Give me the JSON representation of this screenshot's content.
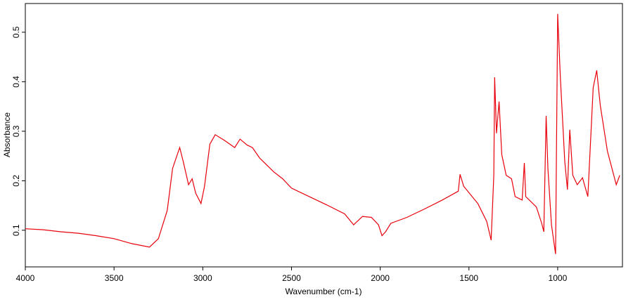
{
  "chart_data": {
    "type": "line",
    "x_label": "Wavenumber (cm-1)",
    "y_label": "Absorbance",
    "xlim": [
      4000,
      635
    ],
    "ylim": [
      0.026,
      0.558
    ],
    "xticks": [
      4000,
      3500,
      3000,
      2500,
      2000,
      1500,
      1000
    ],
    "yticks": [
      0.1,
      0.2,
      0.3,
      0.4,
      0.5
    ],
    "x": [
      4000,
      3900,
      3800,
      3700,
      3600,
      3500,
      3400,
      3300,
      3250,
      3200,
      3170,
      3130,
      3110,
      3080,
      3060,
      3040,
      3010,
      2990,
      2960,
      2930,
      2880,
      2820,
      2790,
      2750,
      2720,
      2680,
      2600,
      2550,
      2500,
      2400,
      2300,
      2200,
      2150,
      2100,
      2050,
      2010,
      1990,
      1970,
      1940,
      1850,
      1750,
      1650,
      1560,
      1550,
      1530,
      1450,
      1400,
      1375,
      1360,
      1355,
      1345,
      1330,
      1315,
      1290,
      1260,
      1240,
      1200,
      1188,
      1180,
      1120,
      1090,
      1078,
      1065,
      1055,
      1035,
      1012,
      1000,
      985,
      960,
      945,
      932,
      915,
      890,
      860,
      830,
      800,
      780,
      760,
      720,
      670,
      650
    ],
    "series": [
      {
        "color": "#e8000b",
        "values": [
          0.103,
          0.101,
          0.097,
          0.094,
          0.089,
          0.083,
          0.073,
          0.066,
          0.083,
          0.14,
          0.225,
          0.267,
          0.239,
          0.192,
          0.204,
          0.175,
          0.154,
          0.189,
          0.274,
          0.293,
          0.282,
          0.267,
          0.284,
          0.272,
          0.267,
          0.246,
          0.218,
          0.204,
          0.185,
          0.168,
          0.151,
          0.133,
          0.111,
          0.128,
          0.126,
          0.111,
          0.089,
          0.097,
          0.114,
          0.126,
          0.143,
          0.161,
          0.179,
          0.213,
          0.189,
          0.154,
          0.118,
          0.08,
          0.211,
          0.409,
          0.296,
          0.36,
          0.253,
          0.211,
          0.204,
          0.168,
          0.161,
          0.236,
          0.168,
          0.147,
          0.114,
          0.097,
          0.331,
          0.225,
          0.111,
          0.052,
          0.537,
          0.409,
          0.239,
          0.182,
          0.303,
          0.211,
          0.192,
          0.206,
          0.168,
          0.388,
          0.423,
          0.352,
          0.26,
          0.192,
          0.211
        ]
      }
    ]
  }
}
